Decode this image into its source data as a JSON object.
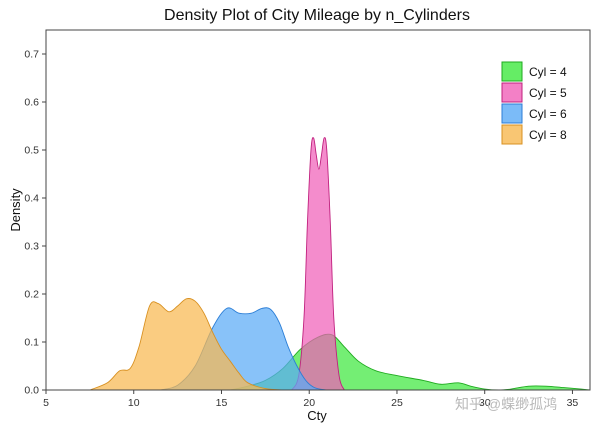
{
  "chart_data": {
    "type": "area",
    "title": "Density Plot of City Mileage by n_Cylinders",
    "xlabel": "Cty",
    "ylabel": "Density",
    "xlim": [
      5,
      36
    ],
    "ylim": [
      0,
      0.75
    ],
    "x_ticks": [
      5,
      10,
      15,
      20,
      25,
      30,
      35
    ],
    "x_tick_labels": [
      "5",
      "10",
      "15",
      "20",
      "25",
      "30",
      "35"
    ],
    "y_ticks": [
      0,
      0.1,
      0.2,
      0.3,
      0.4,
      0.5,
      0.6,
      0.7
    ],
    "y_tick_labels": [
      "0.0",
      "0.1",
      "0.2",
      "0.3",
      "0.4",
      "0.5",
      "0.6",
      "0.7"
    ],
    "grid": false,
    "legend_position": "top-right",
    "series": [
      {
        "name": "Cyl = 4",
        "fill": "#3ee83e",
        "stroke": "#1faa1f",
        "points": [
          [
            15.5,
            0
          ],
          [
            16.5,
            0.008
          ],
          [
            17.5,
            0.02
          ],
          [
            18.5,
            0.045
          ],
          [
            19.5,
            0.085
          ],
          [
            20.5,
            0.11
          ],
          [
            21.3,
            0.115
          ],
          [
            22,
            0.09
          ],
          [
            22.8,
            0.06
          ],
          [
            23.8,
            0.04
          ],
          [
            25,
            0.03
          ],
          [
            26.5,
            0.02
          ],
          [
            27.5,
            0.012
          ],
          [
            28.5,
            0.015
          ],
          [
            29.2,
            0.008
          ],
          [
            30,
            0.002
          ],
          [
            30.8,
            0
          ],
          [
            31.5,
            0.002
          ],
          [
            32.5,
            0.008
          ],
          [
            33.5,
            0.008
          ],
          [
            34.5,
            0.005
          ],
          [
            35.5,
            0.002
          ],
          [
            36,
            0
          ]
        ]
      },
      {
        "name": "Cyl = 5",
        "fill": "#f060b8",
        "stroke": "#c0207e",
        "points": [
          [
            19,
            0
          ],
          [
            19.4,
            0.03
          ],
          [
            19.7,
            0.15
          ],
          [
            19.9,
            0.35
          ],
          [
            20.1,
            0.5
          ],
          [
            20.25,
            0.525
          ],
          [
            20.4,
            0.49
          ],
          [
            20.55,
            0.46
          ],
          [
            20.7,
            0.49
          ],
          [
            20.85,
            0.525
          ],
          [
            21,
            0.5
          ],
          [
            21.2,
            0.35
          ],
          [
            21.4,
            0.15
          ],
          [
            21.7,
            0.03
          ],
          [
            22,
            0
          ]
        ]
      },
      {
        "name": "Cyl = 6",
        "fill": "#5aaaf6",
        "stroke": "#2c7ed6",
        "points": [
          [
            11.5,
            0
          ],
          [
            12.5,
            0.01
          ],
          [
            13.5,
            0.05
          ],
          [
            14.5,
            0.13
          ],
          [
            15.3,
            0.17
          ],
          [
            16,
            0.16
          ],
          [
            16.7,
            0.16
          ],
          [
            17.3,
            0.17
          ],
          [
            17.8,
            0.168
          ],
          [
            18.3,
            0.14
          ],
          [
            18.8,
            0.09
          ],
          [
            19.3,
            0.05
          ],
          [
            19.8,
            0.02
          ],
          [
            20.3,
            0.005
          ],
          [
            21,
            0
          ]
        ]
      },
      {
        "name": "Cyl = 8",
        "fill": "#f8b850",
        "stroke": "#d89020",
        "points": [
          [
            7.5,
            0
          ],
          [
            8.5,
            0.015
          ],
          [
            9.2,
            0.04
          ],
          [
            9.8,
            0.045
          ],
          [
            10.3,
            0.09
          ],
          [
            10.9,
            0.175
          ],
          [
            11.4,
            0.18
          ],
          [
            12,
            0.163
          ],
          [
            12.5,
            0.175
          ],
          [
            13,
            0.19
          ],
          [
            13.5,
            0.185
          ],
          [
            14,
            0.16
          ],
          [
            14.5,
            0.12
          ],
          [
            15,
            0.085
          ],
          [
            15.5,
            0.06
          ],
          [
            16,
            0.035
          ],
          [
            16.5,
            0.015
          ],
          [
            17.5,
            0.003
          ],
          [
            18.5,
            0
          ]
        ]
      }
    ]
  },
  "watermark": "知乎 @蝶缈孤鸿"
}
